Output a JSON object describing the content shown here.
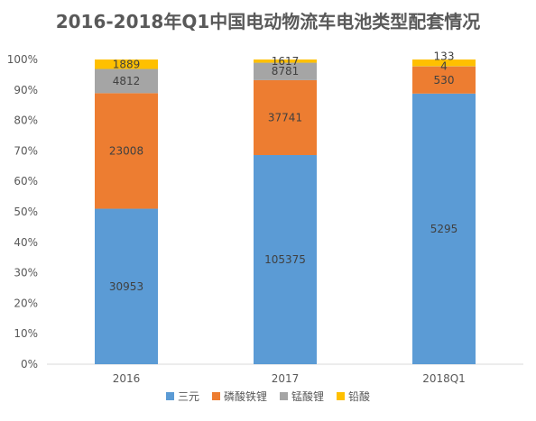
{
  "chart_data": {
    "type": "bar",
    "stacked": "percent",
    "title": "2016-2018年Q1中国电动物流车电池类型配套情况",
    "categories": [
      "2016",
      "2017",
      "2018Q1"
    ],
    "series": [
      {
        "name": "三元",
        "color": "#5B9BD5",
        "values": [
          30953,
          105375,
          5295
        ]
      },
      {
        "name": "磷酸铁锂",
        "color": "#ED7D31",
        "values": [
          23008,
          37741,
          530
        ]
      },
      {
        "name": "锰酸锂",
        "color": "#A5A5A5",
        "values": [
          4812,
          8781,
          4
        ]
      },
      {
        "name": "铅酸",
        "color": "#FFC000",
        "values": [
          1889,
          1617,
          133
        ]
      }
    ],
    "y_ticks": [
      "0%",
      "10%",
      "20%",
      "30%",
      "40%",
      "50%",
      "60%",
      "70%",
      "80%",
      "90%",
      "100%"
    ],
    "ylim": [
      0,
      100
    ],
    "grid": false,
    "legend_position": "bottom"
  }
}
